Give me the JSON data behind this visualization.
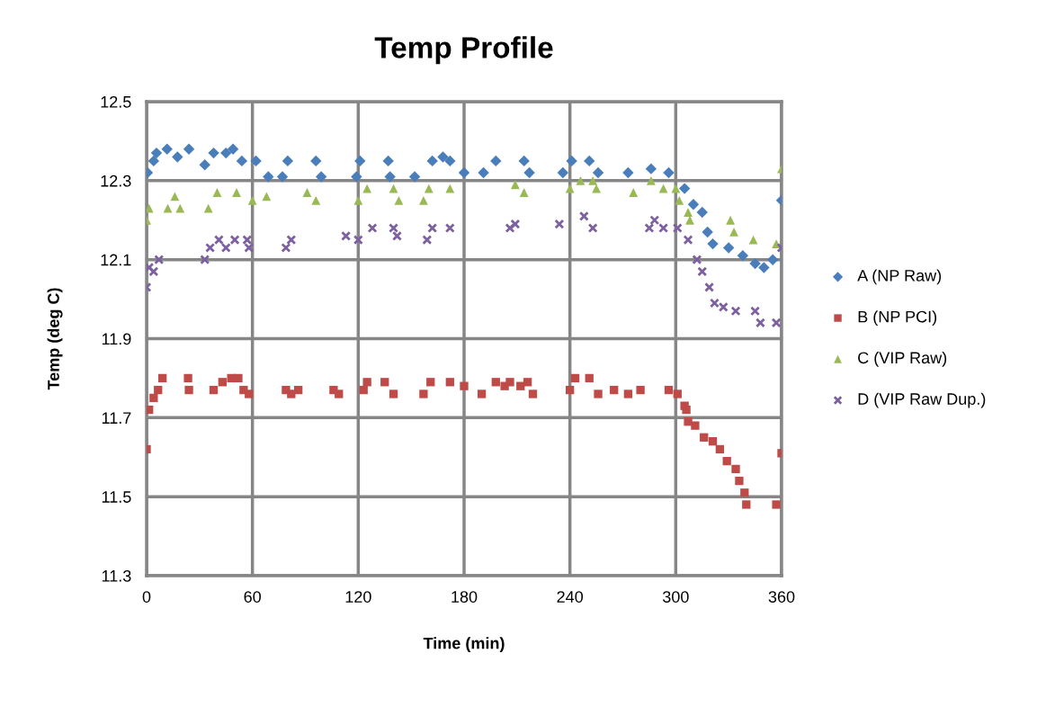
{
  "chart_data": {
    "type": "scatter",
    "title": "Temp Profile",
    "xlabel": "Time (min)",
    "ylabel": "Temp (deg C)",
    "xlim": [
      0,
      360
    ],
    "xticks": [
      0,
      60,
      120,
      180,
      240,
      300,
      360
    ],
    "ylim": [
      11.3,
      12.5
    ],
    "yticks": [
      11.3,
      11.5,
      11.7,
      11.9,
      12.1,
      12.3,
      12.5
    ],
    "grid": true,
    "legend": "right",
    "series": [
      {
        "name": "A (NP Raw)",
        "color": "#4a7ebb",
        "marker": "diamond",
        "x": [
          0.5,
          4,
          5.6,
          11.6,
          17.5,
          24,
          33,
          38,
          45,
          49,
          54,
          62,
          69,
          77,
          80,
          96,
          99,
          119,
          121,
          137,
          138,
          152,
          162,
          168,
          172,
          180,
          191,
          198,
          214,
          217,
          236,
          241,
          251,
          256,
          273,
          286,
          296,
          305,
          310,
          315,
          318,
          321,
          330,
          338,
          345,
          350,
          355,
          360
        ],
        "values": [
          12.32,
          12.35,
          12.37,
          12.38,
          12.36,
          12.38,
          12.34,
          12.37,
          12.37,
          12.38,
          12.35,
          12.35,
          12.31,
          12.31,
          12.35,
          12.35,
          12.31,
          12.31,
          12.35,
          12.35,
          12.31,
          12.31,
          12.35,
          12.36,
          12.35,
          12.32,
          12.32,
          12.35,
          12.35,
          12.32,
          12.32,
          12.35,
          12.35,
          12.32,
          12.32,
          12.33,
          12.32,
          12.28,
          12.24,
          12.22,
          12.17,
          12.14,
          12.13,
          12.11,
          12.09,
          12.08,
          12.1,
          12.25
        ]
      },
      {
        "name": "B (NP PCI)",
        "color": "#be4b48",
        "marker": "square",
        "x": [
          0,
          1.4,
          4,
          6.5,
          9,
          23.5,
          24,
          38,
          43,
          48,
          52,
          55,
          58,
          79,
          82,
          86,
          106,
          109,
          123,
          125,
          135,
          140,
          157,
          161,
          172,
          180,
          190,
          198,
          203,
          206,
          212,
          216,
          219,
          240,
          243,
          251,
          256,
          265,
          273,
          280,
          296,
          301,
          305,
          306,
          307,
          311,
          316,
          321,
          325,
          329,
          334,
          336,
          339,
          340,
          357,
          360
        ],
        "values": [
          11.62,
          11.72,
          11.75,
          11.77,
          11.8,
          11.8,
          11.77,
          11.77,
          11.79,
          11.8,
          11.8,
          11.77,
          11.76,
          11.77,
          11.76,
          11.77,
          11.77,
          11.76,
          11.77,
          11.79,
          11.79,
          11.76,
          11.76,
          11.79,
          11.79,
          11.78,
          11.76,
          11.79,
          11.78,
          11.79,
          11.78,
          11.79,
          11.76,
          11.77,
          11.8,
          11.8,
          11.76,
          11.77,
          11.76,
          11.77,
          11.77,
          11.76,
          11.73,
          11.72,
          11.69,
          11.68,
          11.65,
          11.64,
          11.62,
          11.59,
          11.57,
          11.54,
          11.51,
          11.48,
          11.48,
          11.61
        ]
      },
      {
        "name": "C (VIP Raw)",
        "color": "#98b954",
        "marker": "triangle",
        "x": [
          0,
          1.4,
          12,
          16,
          19,
          35,
          40,
          51,
          60,
          68,
          91,
          96,
          120,
          125,
          140,
          143,
          157,
          160,
          172,
          209,
          214,
          240,
          246,
          253,
          255,
          276,
          286,
          293,
          300,
          302,
          307,
          308,
          331,
          333,
          344,
          357,
          360
        ],
        "values": [
          12.2,
          12.23,
          12.23,
          12.26,
          12.23,
          12.23,
          12.27,
          12.27,
          12.25,
          12.26,
          12.27,
          12.25,
          12.25,
          12.28,
          12.28,
          12.25,
          12.25,
          12.28,
          12.28,
          12.29,
          12.27,
          12.28,
          12.3,
          12.3,
          12.28,
          12.27,
          12.3,
          12.28,
          12.28,
          12.25,
          12.22,
          12.2,
          12.2,
          12.17,
          12.15,
          12.14,
          12.33
        ]
      },
      {
        "name": "D (VIP Raw Dup.)",
        "color": "#7d60a0",
        "marker": "cross",
        "x": [
          0,
          1.4,
          4,
          7,
          33,
          36,
          41,
          45,
          50,
          57,
          58,
          79,
          82,
          113,
          120,
          128,
          140,
          142,
          159,
          162,
          172,
          206,
          209,
          234,
          248,
          253,
          285,
          288,
          293,
          301,
          307,
          312,
          315,
          319,
          322,
          327,
          334,
          345,
          348,
          357,
          360
        ],
        "values": [
          12.03,
          12.08,
          12.07,
          12.1,
          12.1,
          12.13,
          12.15,
          12.13,
          12.15,
          12.15,
          12.13,
          12.13,
          12.15,
          12.16,
          12.15,
          12.18,
          12.18,
          12.16,
          12.15,
          12.18,
          12.18,
          12.18,
          12.19,
          12.19,
          12.21,
          12.18,
          12.18,
          12.2,
          12.18,
          12.18,
          12.15,
          12.1,
          12.07,
          12.03,
          11.99,
          11.98,
          11.97,
          11.97,
          11.94,
          11.94,
          12.13
        ]
      }
    ]
  }
}
